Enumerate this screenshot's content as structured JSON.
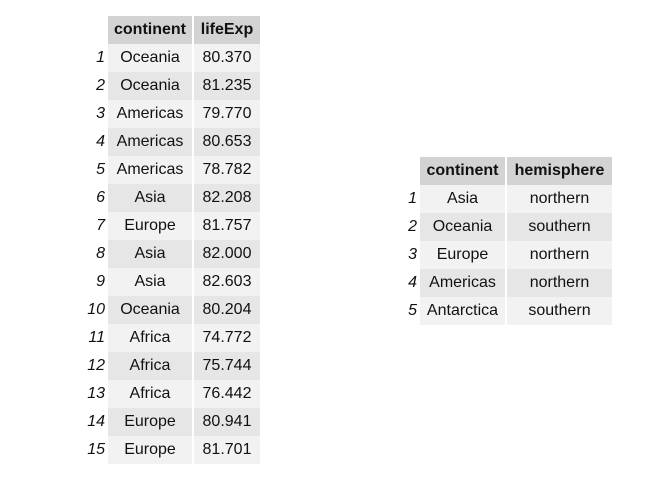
{
  "left_table": {
    "columns": [
      "continent",
      "lifeExp"
    ],
    "rows": [
      {
        "index": "1",
        "continent": "Oceania",
        "lifeExp": "80.370"
      },
      {
        "index": "2",
        "continent": "Oceania",
        "lifeExp": "81.235"
      },
      {
        "index": "3",
        "continent": "Americas",
        "lifeExp": "79.770"
      },
      {
        "index": "4",
        "continent": "Americas",
        "lifeExp": "80.653"
      },
      {
        "index": "5",
        "continent": "Americas",
        "lifeExp": "78.782"
      },
      {
        "index": "6",
        "continent": "Asia",
        "lifeExp": "82.208"
      },
      {
        "index": "7",
        "continent": "Europe",
        "lifeExp": "81.757"
      },
      {
        "index": "8",
        "continent": "Asia",
        "lifeExp": "82.000"
      },
      {
        "index": "9",
        "continent": "Asia",
        "lifeExp": "82.603"
      },
      {
        "index": "10",
        "continent": "Oceania",
        "lifeExp": "80.204"
      },
      {
        "index": "11",
        "continent": "Africa",
        "lifeExp": "74.772"
      },
      {
        "index": "12",
        "continent": "Africa",
        "lifeExp": "75.744"
      },
      {
        "index": "13",
        "continent": "Africa",
        "lifeExp": "76.442"
      },
      {
        "index": "14",
        "continent": "Europe",
        "lifeExp": "80.941"
      },
      {
        "index": "15",
        "continent": "Europe",
        "lifeExp": "81.701"
      }
    ]
  },
  "right_table": {
    "columns": [
      "continent",
      "hemisphere"
    ],
    "rows": [
      {
        "index": "1",
        "continent": "Asia",
        "hemisphere": "northern"
      },
      {
        "index": "2",
        "continent": "Oceania",
        "hemisphere": "southern"
      },
      {
        "index": "3",
        "continent": "Europe",
        "hemisphere": "northern"
      },
      {
        "index": "4",
        "continent": "Americas",
        "hemisphere": "northern"
      },
      {
        "index": "5",
        "continent": "Antarctica",
        "hemisphere": "southern"
      }
    ]
  }
}
